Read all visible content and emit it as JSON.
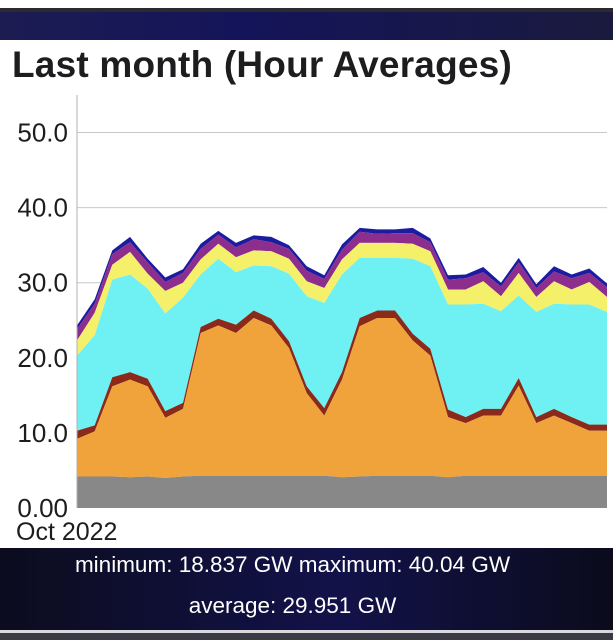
{
  "title": "Last month (Hour Averages)",
  "stats": {
    "minimum_label": "minimum:",
    "minimum_value": "18.837 GW",
    "maximum_label": "maximum:",
    "maximum_value": "40.04 GW",
    "average_label": "average:",
    "average_value": "29.951 GW",
    "line1": "minimum: 18.837 GW maximum: 40.04 GW",
    "line2": "average: 29.951 GW"
  },
  "chart_data": {
    "type": "area",
    "stacked": true,
    "title": "Last month (Hour Averages)",
    "xlabel": "Oct 2022",
    "ylabel": "",
    "ylim": [
      0,
      55
    ],
    "yticks": [
      "0.00",
      "10.0",
      "20.0",
      "30.0",
      "40.0",
      "50.0"
    ],
    "grid": true,
    "x": [
      1,
      2,
      3,
      4,
      5,
      6,
      7,
      8,
      9,
      10,
      11,
      12,
      13,
      14,
      15,
      16,
      17,
      18,
      19,
      20,
      21,
      22,
      23,
      24,
      25,
      26,
      27,
      28,
      29,
      30,
      31
    ],
    "series": [
      {
        "color": "#888888",
        "values": [
          4.2,
          4.2,
          4.2,
          4.1,
          4.2,
          4.0,
          4.2,
          4.3,
          4.3,
          4.3,
          4.3,
          4.3,
          4.3,
          4.3,
          4.3,
          4.1,
          4.2,
          4.3,
          4.3,
          4.3,
          4.3,
          4.1,
          4.3,
          4.3,
          4.3,
          4.3,
          4.3,
          4.3,
          4.3,
          4.3,
          4.3
        ]
      },
      {
        "color": "#f0a33a",
        "values": [
          5,
          6,
          12,
          13,
          12,
          8,
          9,
          19,
          20,
          19,
          21,
          20,
          17,
          11,
          8,
          13,
          20,
          21,
          21,
          18,
          16,
          8,
          7,
          8,
          8,
          12,
          7,
          8,
          7,
          6,
          6
        ]
      },
      {
        "color": "#8b2a1a",
        "values": [
          1.1,
          0.8,
          1.2,
          1.0,
          1.0,
          0.9,
          0.8,
          0.8,
          0.9,
          1.1,
          1.0,
          0.9,
          0.9,
          0.9,
          1.0,
          1.0,
          1.1,
          1.0,
          1.0,
          0.9,
          0.9,
          1.0,
          0.8,
          0.9,
          0.9,
          1.0,
          0.8,
          0.9,
          0.8,
          0.8,
          0.8
        ]
      },
      {
        "color": "#6ff0f2",
        "values": [
          10,
          12,
          13,
          13,
          12,
          13,
          14,
          7,
          8,
          7,
          6,
          7,
          9,
          12,
          14,
          13,
          8,
          7,
          7,
          10,
          11,
          14,
          15,
          14,
          13,
          11,
          14,
          14,
          15,
          16,
          15
        ]
      },
      {
        "color": "#f5f06a",
        "values": [
          2,
          3,
          2,
          3,
          2,
          3,
          2,
          2,
          2,
          2,
          2,
          2,
          2,
          2,
          2,
          2,
          2,
          2,
          2,
          2,
          2,
          2,
          2,
          3,
          2,
          3,
          2,
          3,
          2,
          3,
          2
        ]
      },
      {
        "color": "#8d2d8d",
        "values": [
          1.5,
          1.2,
          1.4,
          1.3,
          1.5,
          1.2,
          1.3,
          1.4,
          1.2,
          1.3,
          1.5,
          1.2,
          1.3,
          1.4,
          1.2,
          1.3,
          1.5,
          1.2,
          1.3,
          1.4,
          1.2,
          1.3,
          1.5,
          1.2,
          1.3,
          1.4,
          1.2,
          1.3,
          1.5,
          1.2,
          1.3
        ]
      },
      {
        "color": "#1c1ca0",
        "values": [
          0.5,
          0.6,
          0.5,
          0.7,
          0.5,
          0.6,
          0.5,
          0.7,
          0.5,
          0.6,
          0.5,
          0.7,
          0.5,
          0.6,
          0.5,
          0.7,
          0.5,
          0.6,
          0.5,
          0.7,
          0.5,
          0.6,
          0.5,
          0.7,
          0.5,
          0.6,
          0.5,
          0.7,
          0.5,
          0.6,
          0.5
        ]
      }
    ]
  }
}
